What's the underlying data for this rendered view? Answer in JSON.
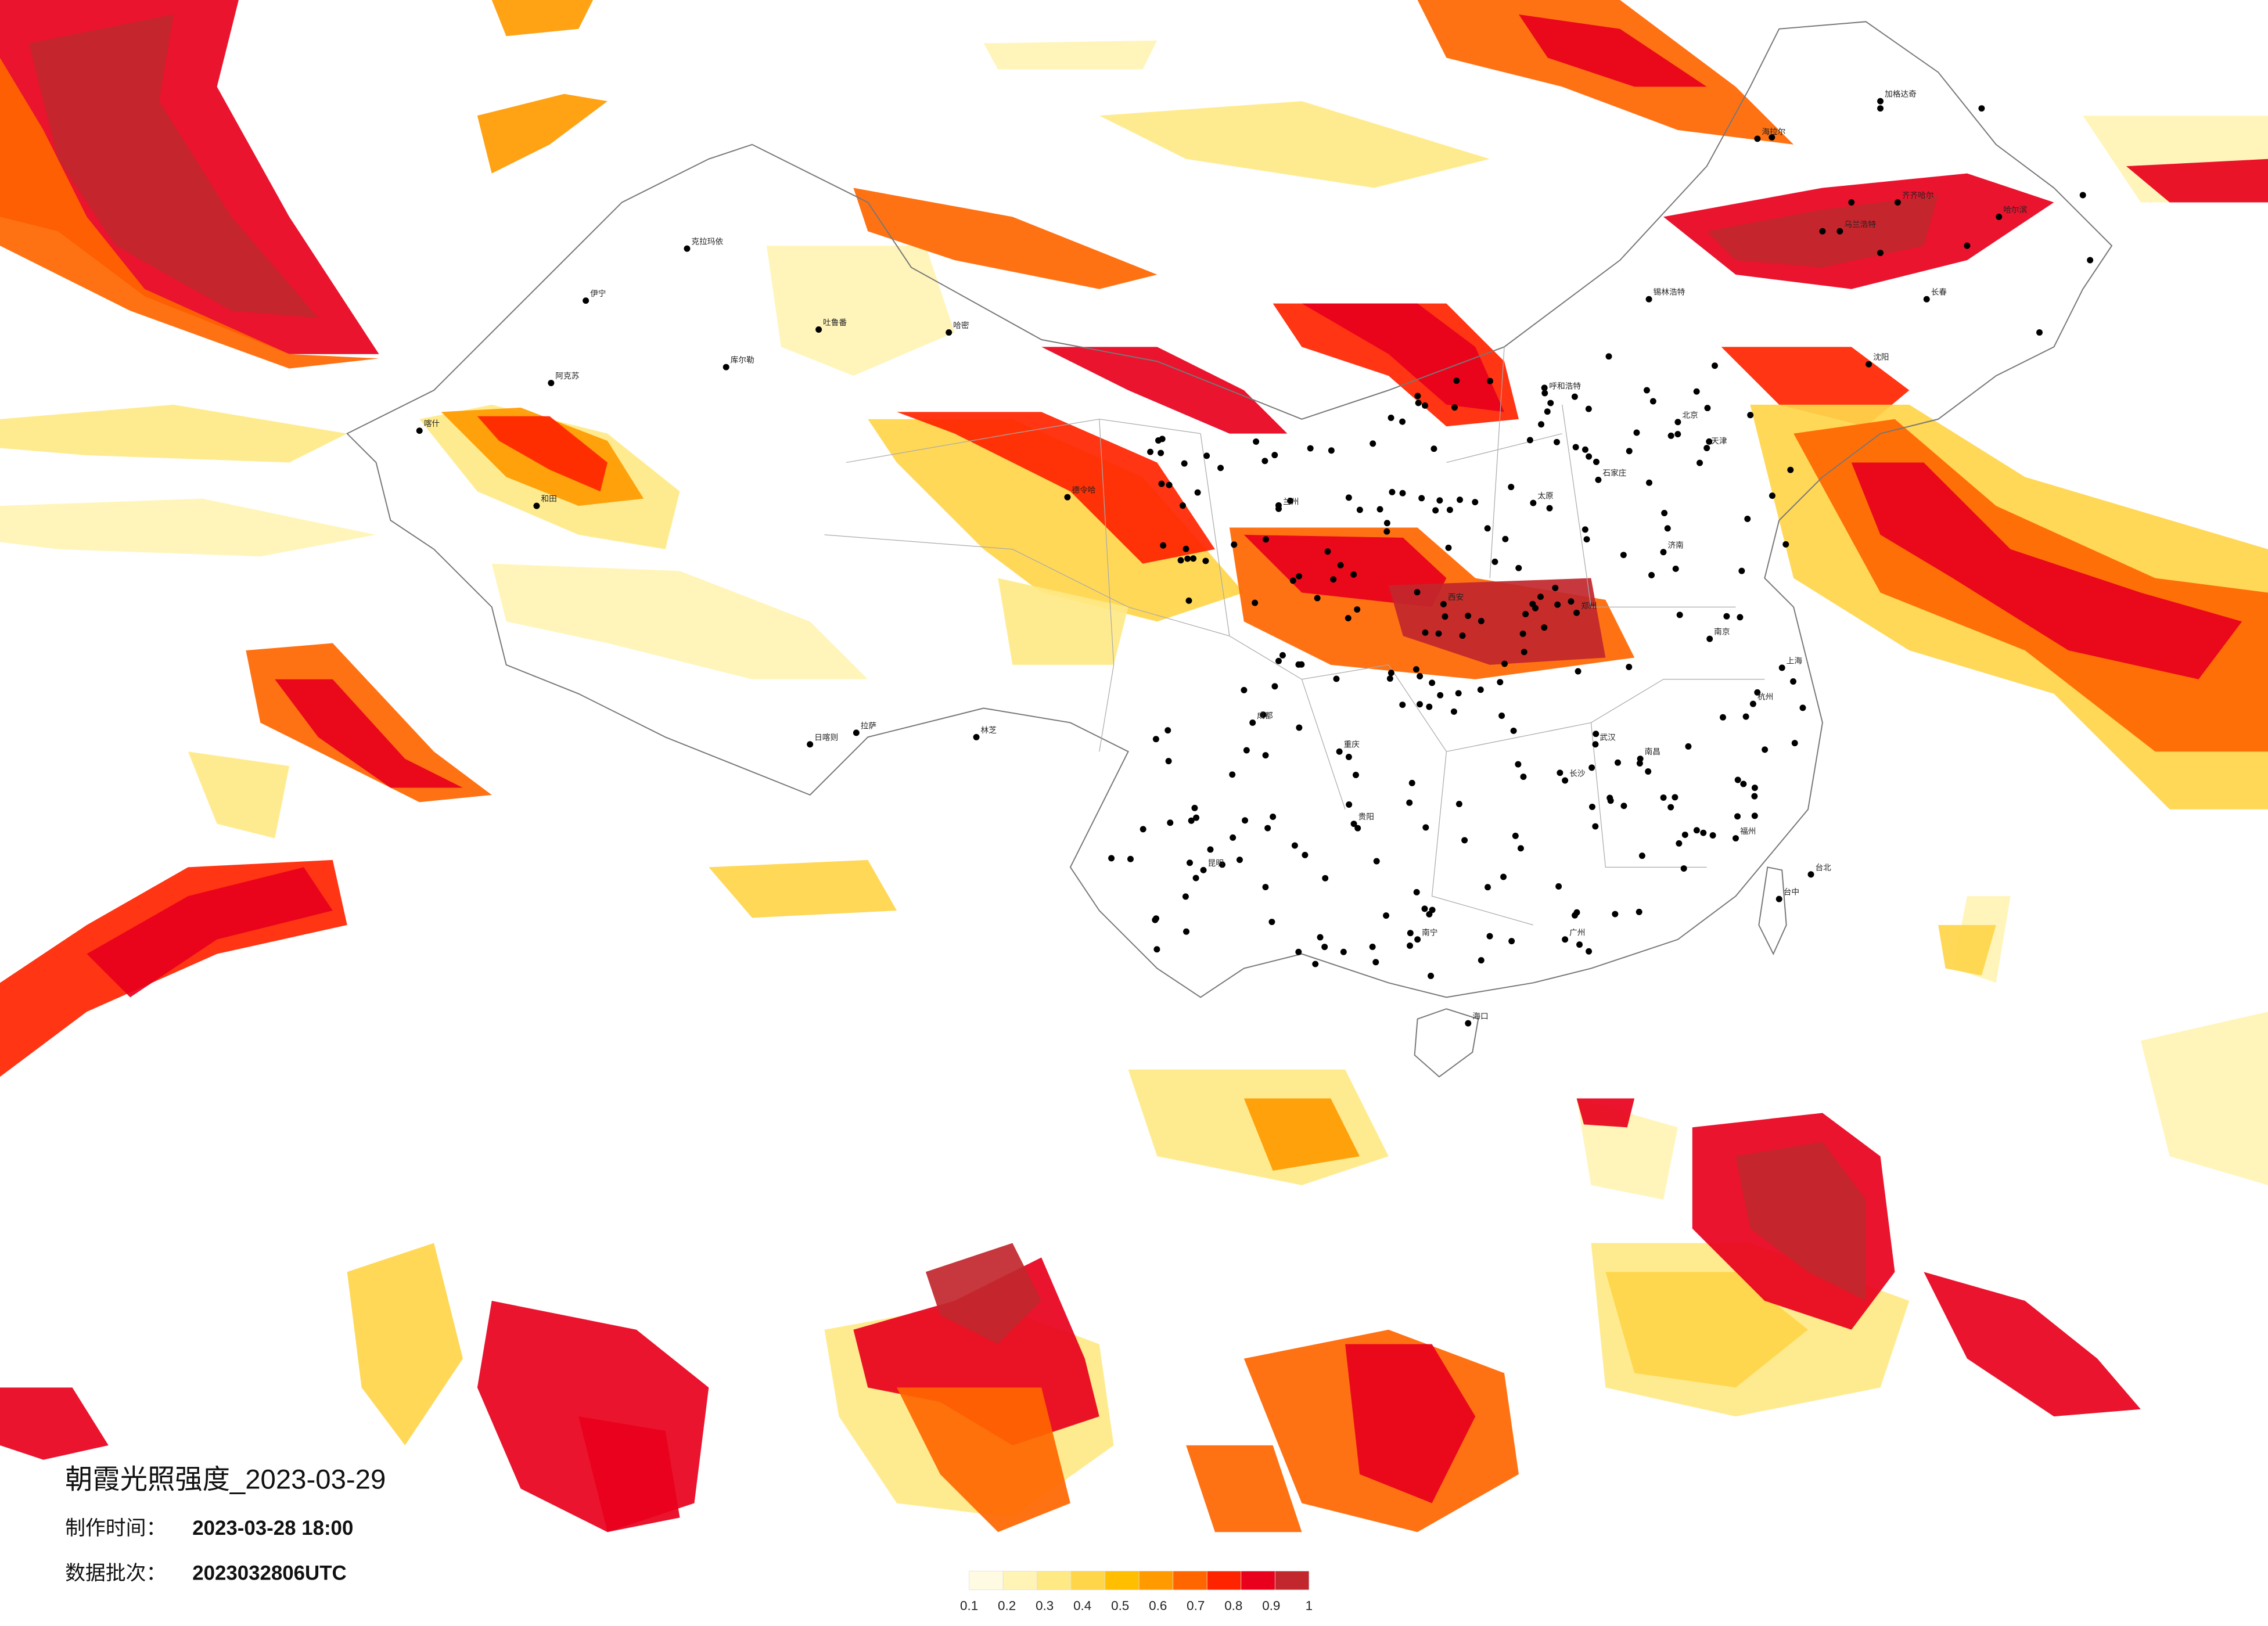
{
  "map": {
    "title": "朝霞光照强度_2023-03-29",
    "info": [
      {
        "label": "制作时间：",
        "value": "2023-03-28 18:00"
      },
      {
        "label": "数据批次：",
        "value": "2023032806UTC"
      }
    ],
    "legend": {
      "colors": [
        "#fffbe3",
        "#fff4b5",
        "#ffe985",
        "#ffd54a",
        "#ffbf00",
        "#ff9a00",
        "#ff6600",
        "#ff2400",
        "#e8001c",
        "#c1272d"
      ],
      "ticks": [
        0.1,
        0.2,
        0.3,
        0.4,
        0.5,
        0.6,
        0.7,
        0.8,
        0.9,
        1
      ]
    },
    "cities": [
      "克拉玛依",
      "伊宁",
      "阿克苏",
      "喀什",
      "和田",
      "哈密",
      "库尔勒",
      "吐鲁番",
      "德令哈",
      "拉萨",
      "日喀则",
      "林芝",
      "呼和浩特",
      "北京",
      "天津",
      "石家庄",
      "太原",
      "济南",
      "西安",
      "郑州",
      "武汉",
      "南京",
      "上海",
      "杭州",
      "长沙",
      "南昌",
      "福州",
      "广州",
      "南宁",
      "昆明",
      "贵阳",
      "成都",
      "重庆",
      "兰州",
      "哈尔滨",
      "长春",
      "沈阳",
      "海口",
      "台北",
      "台中",
      "乌兰浩特",
      "齐齐哈尔",
      "海拉尔",
      "加格达奇",
      "锡林浩特"
    ]
  }
}
